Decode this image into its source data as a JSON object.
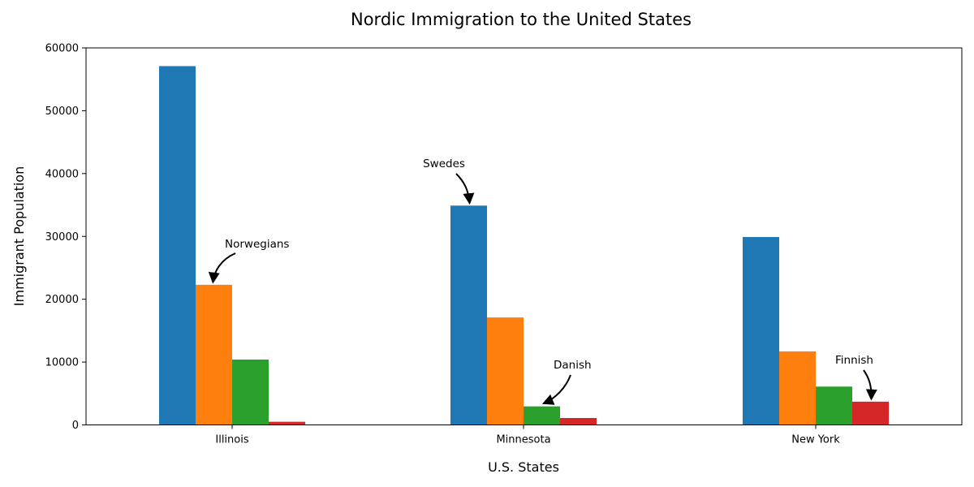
{
  "chart_data": {
    "type": "bar",
    "title": "Nordic Immigration to the United States",
    "xlabel": "U.S. States",
    "ylabel": "Immigrant Population",
    "categories": [
      "Illinois",
      "Minnesota",
      "New York"
    ],
    "series": [
      {
        "values": [
          57100,
          34900,
          29900
        ],
        "color": "#1f77b4"
      },
      {
        "values": [
          22300,
          17100,
          11700
        ],
        "color": "#ff7f0e"
      },
      {
        "values": [
          10400,
          2950,
          6100
        ],
        "color": "#2ca02c"
      },
      {
        "values": [
          500,
          1100,
          3700
        ],
        "color": "#d62728"
      }
    ],
    "ylim": [
      0,
      60000
    ],
    "yticks": [
      0,
      10000,
      20000,
      30000,
      40000,
      50000,
      60000
    ],
    "grid": false,
    "annotations": [
      {
        "text": "Norwegians",
        "category": "Illinois",
        "series_index": 1
      },
      {
        "text": "Swedes",
        "category": "Minnesota",
        "series_index": 0
      },
      {
        "text": "Danish",
        "category": "Minnesota",
        "series_index": 2
      },
      {
        "text": "Finnish",
        "category": "New York",
        "series_index": 3
      }
    ]
  }
}
